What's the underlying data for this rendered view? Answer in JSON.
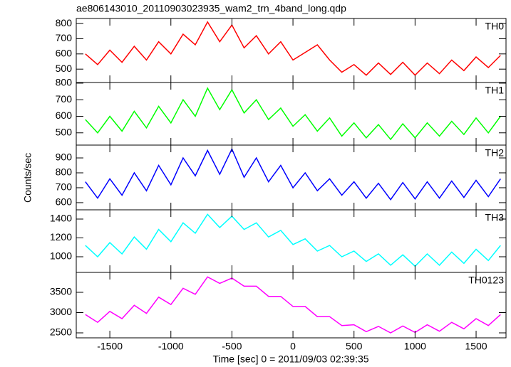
{
  "figure": {
    "title": "ae806143010_20110903023935_wam2_trn_4band_long.qdp",
    "xlabel": "Time [sec] 0 = 2011/09/03 02:39:35",
    "ylabel": "Counts/sec",
    "xlim": [
      -1775,
      1745
    ],
    "xticks": [
      -1500,
      -1000,
      -500,
      0,
      500,
      1000,
      1500
    ]
  },
  "chart_data": [
    {
      "type": "line",
      "name": "TH0",
      "color": "#ff0000",
      "ylim": [
        412,
        833
      ],
      "yticks": [
        500,
        600,
        700,
        800
      ],
      "x": [
        -1700,
        -1600,
        -1500,
        -1400,
        -1300,
        -1200,
        -1100,
        -1000,
        -900,
        -800,
        -700,
        -600,
        -500,
        -400,
        -300,
        -200,
        -100,
        0,
        100,
        200,
        300,
        400,
        500,
        600,
        700,
        800,
        900,
        1000,
        1100,
        1200,
        1300,
        1400,
        1500,
        1600,
        1700
      ],
      "values": [
        600,
        530,
        625,
        545,
        650,
        560,
        680,
        600,
        730,
        660,
        810,
        680,
        790,
        640,
        720,
        600,
        680,
        560,
        610,
        660,
        560,
        480,
        530,
        460,
        540,
        465,
        545,
        460,
        540,
        470,
        560,
        490,
        580,
        510,
        590
      ]
    },
    {
      "type": "line",
      "name": "TH1",
      "color": "#00ff00",
      "ylim": [
        426,
        804
      ],
      "yticks": [
        500,
        600,
        700,
        800
      ],
      "x": [
        -1700,
        -1600,
        -1500,
        -1400,
        -1300,
        -1200,
        -1100,
        -1000,
        -900,
        -800,
        -700,
        -600,
        -500,
        -400,
        -300,
        -200,
        -100,
        0,
        100,
        200,
        300,
        400,
        500,
        600,
        700,
        800,
        900,
        1000,
        1100,
        1200,
        1300,
        1400,
        1500,
        1600,
        1700
      ],
      "values": [
        580,
        500,
        600,
        510,
        630,
        530,
        660,
        560,
        700,
        600,
        770,
        640,
        760,
        620,
        700,
        580,
        650,
        540,
        610,
        510,
        590,
        480,
        560,
        470,
        550,
        460,
        555,
        470,
        560,
        480,
        570,
        490,
        590,
        500,
        600
      ]
    },
    {
      "type": "line",
      "name": "TH2",
      "color": "#0000ff",
      "ylim": [
        552,
        986
      ],
      "yticks": [
        600,
        700,
        800,
        900
      ],
      "x": [
        -1700,
        -1600,
        -1500,
        -1400,
        -1300,
        -1200,
        -1100,
        -1000,
        -900,
        -800,
        -700,
        -600,
        -500,
        -400,
        -300,
        -200,
        -100,
        0,
        100,
        200,
        300,
        400,
        500,
        600,
        700,
        800,
        900,
        1000,
        1100,
        1200,
        1300,
        1400,
        1500,
        1600,
        1700
      ],
      "values": [
        740,
        630,
        760,
        650,
        800,
        680,
        850,
        720,
        900,
        780,
        950,
        790,
        960,
        770,
        900,
        740,
        850,
        700,
        800,
        680,
        760,
        650,
        740,
        630,
        730,
        620,
        735,
        625,
        740,
        630,
        745,
        635,
        750,
        640,
        760
      ]
    },
    {
      "type": "line",
      "name": "TH3",
      "color": "#00ffff",
      "ylim": [
        834,
        1498
      ],
      "yticks": [
        1000,
        1200,
        1400
      ],
      "x": [
        -1700,
        -1600,
        -1500,
        -1400,
        -1300,
        -1200,
        -1100,
        -1000,
        -900,
        -800,
        -700,
        -600,
        -500,
        -400,
        -300,
        -200,
        -100,
        0,
        100,
        200,
        300,
        400,
        500,
        600,
        700,
        800,
        900,
        1000,
        1100,
        1200,
        1300,
        1400,
        1500,
        1600,
        1700
      ],
      "values": [
        1120,
        1000,
        1150,
        1030,
        1210,
        1080,
        1290,
        1160,
        1360,
        1250,
        1450,
        1310,
        1430,
        1290,
        1360,
        1210,
        1280,
        1130,
        1190,
        1060,
        1120,
        1000,
        1060,
        950,
        1030,
        910,
        1020,
        900,
        1030,
        910,
        1050,
        930,
        1080,
        960,
        1120
      ]
    },
    {
      "type": "line",
      "name": "TH0123",
      "color": "#ff00ff",
      "ylim": [
        2377,
        3991
      ],
      "yticks": [
        2500,
        3000,
        3500
      ],
      "x": [
        -1700,
        -1600,
        -1500,
        -1400,
        -1300,
        -1200,
        -1100,
        -1000,
        -900,
        -800,
        -700,
        -600,
        -500,
        -400,
        -300,
        -200,
        -100,
        0,
        100,
        200,
        300,
        400,
        500,
        600,
        700,
        800,
        900,
        1000,
        1100,
        1200,
        1300,
        1400,
        1500,
        1600,
        1700
      ],
      "values": [
        2950,
        2760,
        3030,
        2850,
        3180,
        2980,
        3380,
        3200,
        3600,
        3450,
        3880,
        3720,
        3850,
        3650,
        3650,
        3400,
        3400,
        3150,
        3150,
        2900,
        2900,
        2680,
        2700,
        2530,
        2660,
        2500,
        2670,
        2510,
        2700,
        2540,
        2760,
        2600,
        2850,
        2680,
        2950
      ]
    }
  ]
}
